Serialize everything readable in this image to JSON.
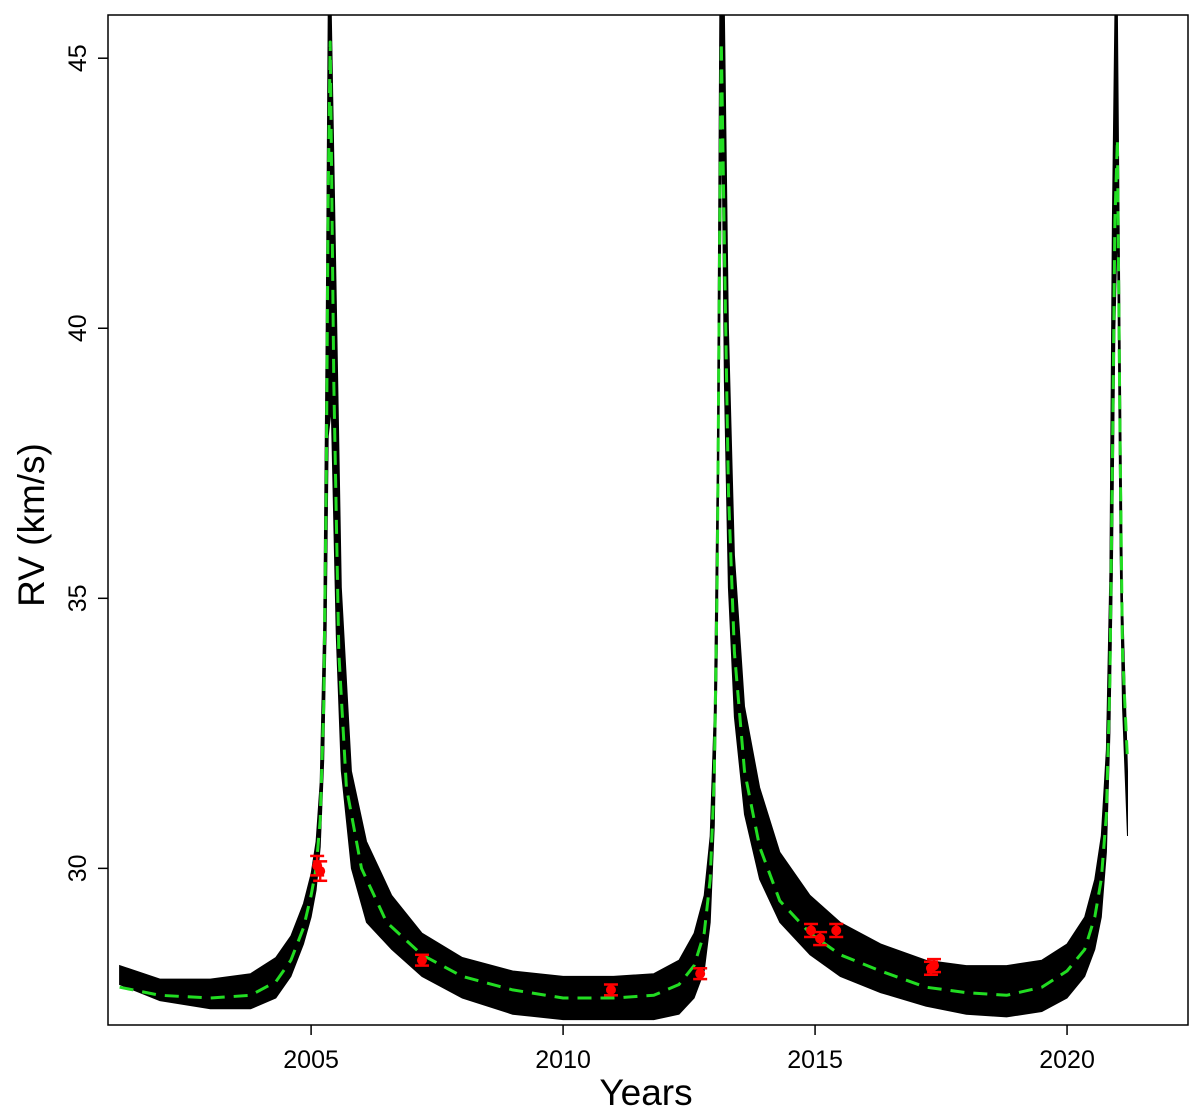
{
  "chart_data": {
    "type": "line",
    "title": "",
    "xlabel": "Years",
    "ylabel": "RV (km/s)",
    "xlim": [
      2000.97,
      2022.4
    ],
    "ylim": [
      27.1,
      45.8
    ],
    "xticks": [
      2005,
      2010,
      2015,
      2020
    ],
    "yticks": [
      30,
      35,
      40,
      45
    ],
    "grid": false,
    "colors": {
      "model_band": "#000000",
      "best_fit": "#22dd22",
      "observations": "#ff0000",
      "frame": "#000000"
    },
    "series": [
      {
        "style": "posterior-draws",
        "x": [
          2001.2,
          2002.0,
          2003.0,
          2003.8,
          2004.3,
          2004.6,
          2004.85,
          2005.0,
          2005.1,
          2005.18,
          2005.25,
          2005.3,
          2005.34,
          2005.4,
          2005.5,
          2005.6,
          2005.8,
          2006.1,
          2006.6,
          2007.2,
          2008.0,
          2009.0,
          2010.0,
          2011.0,
          2011.8,
          2012.3,
          2012.6,
          2012.8,
          2012.92,
          2013.0,
          2013.06,
          2013.11,
          2013.15,
          2013.2,
          2013.28,
          2013.4,
          2013.6,
          2013.9,
          2014.3,
          2014.9,
          2015.5,
          2016.3,
          2017.2,
          2018.0,
          2018.8,
          2019.5,
          2020.0,
          2020.35,
          2020.55,
          2020.68,
          2020.78,
          2020.85,
          2020.9,
          2020.95,
          2021.0,
          2021.05,
          2021.1,
          2021.2
        ],
        "y_low": [
          27.85,
          27.55,
          27.4,
          27.4,
          27.6,
          28.0,
          28.6,
          29.1,
          29.6,
          30.4,
          32.0,
          34.5,
          38.0,
          38.5,
          34.3,
          31.8,
          30.0,
          29.0,
          28.5,
          28.0,
          27.6,
          27.3,
          27.2,
          27.2,
          27.2,
          27.3,
          27.6,
          28.1,
          29.0,
          30.8,
          34.0,
          40.0,
          44.0,
          39.0,
          35.2,
          32.8,
          31.0,
          29.8,
          29.0,
          28.4,
          28.0,
          27.7,
          27.45,
          27.3,
          27.25,
          27.35,
          27.6,
          28.0,
          28.5,
          29.1,
          30.3,
          32.5,
          35.5,
          40.0,
          42.0,
          36.0,
          33.0,
          30.6
        ],
        "y_high": [
          28.2,
          27.95,
          27.95,
          28.05,
          28.35,
          28.75,
          29.35,
          29.9,
          30.5,
          31.6,
          34.5,
          40.0,
          45.8,
          45.8,
          40.5,
          35.2,
          31.8,
          30.5,
          29.5,
          28.8,
          28.35,
          28.1,
          28.0,
          28.0,
          28.05,
          28.3,
          28.8,
          29.5,
          30.6,
          32.9,
          37.5,
          45.8,
          45.8,
          45.8,
          40.0,
          35.8,
          33.0,
          31.5,
          30.3,
          29.5,
          29.0,
          28.6,
          28.3,
          28.2,
          28.2,
          28.3,
          28.6,
          29.1,
          29.8,
          30.6,
          32.2,
          35.5,
          42.0,
          45.8,
          45.8,
          40.0,
          35.0,
          31.8
        ]
      },
      {
        "style": "best-fit-dashed",
        "x": [
          2001.2,
          2002.0,
          2003.0,
          2003.8,
          2004.3,
          2004.6,
          2004.85,
          2005.0,
          2005.1,
          2005.18,
          2005.25,
          2005.3,
          2005.34,
          2005.38,
          2005.45,
          2005.55,
          2005.7,
          2006.0,
          2006.5,
          2007.2,
          2008.0,
          2009.0,
          2010.0,
          2011.0,
          2011.8,
          2012.3,
          2012.6,
          2012.8,
          2012.92,
          2013.0,
          2013.06,
          2013.11,
          2013.14,
          2013.2,
          2013.28,
          2013.4,
          2013.6,
          2013.9,
          2014.3,
          2014.9,
          2015.5,
          2016.3,
          2017.2,
          2018.0,
          2018.8,
          2019.5,
          2020.0,
          2020.35,
          2020.55,
          2020.68,
          2020.78,
          2020.85,
          2020.9,
          2020.95,
          2021.0,
          2021.05,
          2021.1,
          2021.2
        ],
        "y": [
          27.8,
          27.65,
          27.6,
          27.65,
          27.9,
          28.3,
          28.9,
          29.5,
          30.0,
          30.9,
          33.0,
          37.0,
          42.5,
          45.3,
          39.0,
          34.0,
          31.5,
          30.0,
          29.0,
          28.4,
          28.0,
          27.75,
          27.6,
          27.6,
          27.65,
          27.85,
          28.2,
          28.8,
          29.8,
          31.7,
          35.5,
          42.0,
          45.3,
          41.5,
          37.0,
          34.0,
          31.8,
          30.4,
          29.4,
          28.8,
          28.4,
          28.1,
          27.8,
          27.7,
          27.65,
          27.8,
          28.1,
          28.5,
          29.1,
          29.8,
          31.0,
          33.5,
          37.5,
          42.0,
          43.5,
          38.0,
          34.0,
          32.0
        ]
      }
    ],
    "observations": [
      {
        "x": 2005.12,
        "y": 30.05,
        "err": 0.18
      },
      {
        "x": 2005.18,
        "y": 29.95,
        "err": 0.18
      },
      {
        "x": 2007.2,
        "y": 28.3,
        "err": 0.1
      },
      {
        "x": 2010.95,
        "y": 27.75,
        "err": 0.1
      },
      {
        "x": 2012.72,
        "y": 28.05,
        "err": 0.1
      },
      {
        "x": 2014.92,
        "y": 28.85,
        "err": 0.12
      },
      {
        "x": 2015.1,
        "y": 28.7,
        "err": 0.12
      },
      {
        "x": 2015.42,
        "y": 28.85,
        "err": 0.12
      },
      {
        "x": 2017.3,
        "y": 28.15,
        "err": 0.12
      },
      {
        "x": 2017.36,
        "y": 28.2,
        "err": 0.12
      }
    ]
  }
}
